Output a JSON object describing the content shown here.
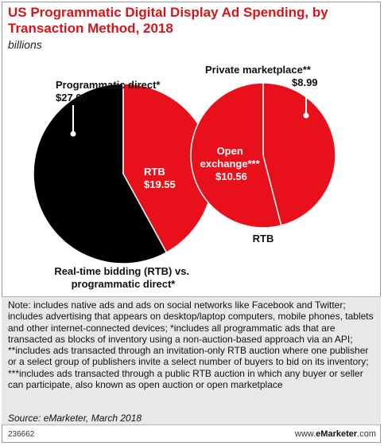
{
  "header": {
    "title": "US Programmatic Digital Display Ad Spending, by Transaction Method, 2018",
    "subtitle": "billions"
  },
  "chart_data": [
    {
      "type": "pie",
      "caption_lines": [
        "Real-time bidding (RTB) vs.",
        "programmatic direct*"
      ],
      "slices": [
        {
          "label_lines": [
            "Programmatic direct*"
          ],
          "value": 27.0,
          "value_label": "$27.00",
          "color": "#000000"
        },
        {
          "label_lines": [
            "RTB"
          ],
          "value": 19.55,
          "value_label": "$19.55",
          "color": "#e8111b"
        }
      ]
    },
    {
      "type": "pie",
      "caption_lines": [
        "RTB"
      ],
      "slices": [
        {
          "label_lines": [
            "Private marketplace**"
          ],
          "value": 8.99,
          "value_label": "$8.99",
          "color": "#e8111b"
        },
        {
          "label_lines": [
            "Open",
            "exchange***"
          ],
          "value": 10.56,
          "value_label": "$10.56",
          "color": "#e8111b"
        }
      ]
    }
  ],
  "notes": {
    "text": "Note: includes native ads and ads on social networks like Facebook and Twitter; includes advertising that appears on desktop/laptop computers, mobile phones, tablets and other internet-connected devices; *includes all programmatic ads that are transacted as blocks of inventory using a non-auction-based approach via an API; **includes ads transacted through an invitation-only RTB auction where one publisher or a select group of publishers invite a select number of buyers to bid on its inventory; ***includes ads transacted through a public RTB auction in which any buyer or seller can participate, also known as open auction or open marketplace",
    "source": "Source: eMarketer, March 2018"
  },
  "footer": {
    "chart_id": "236662",
    "brand_prefix": "www.",
    "brand_name": "eMarketer",
    "brand_suffix": ".com"
  }
}
